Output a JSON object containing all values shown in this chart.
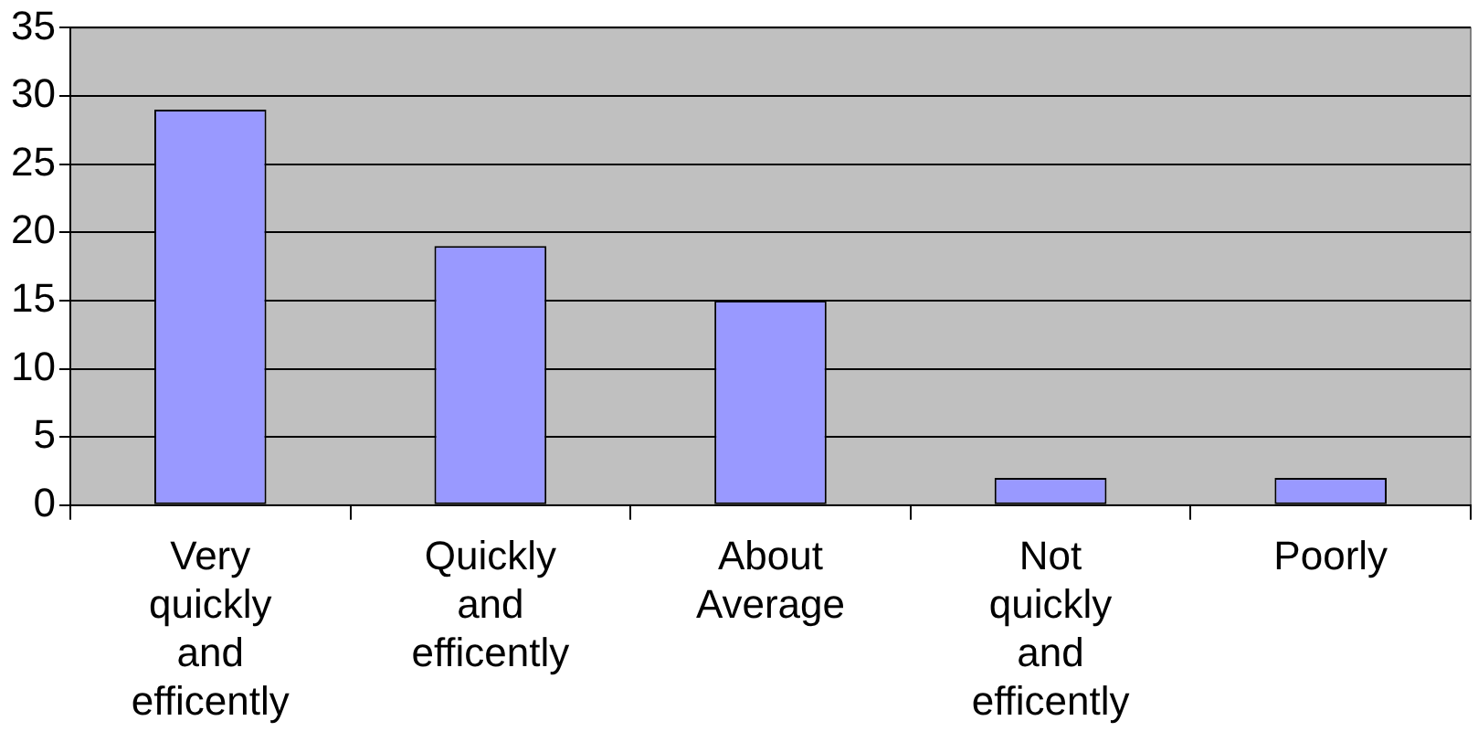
{
  "chart_data": {
    "type": "bar",
    "categories": [
      "Very quickly and efficently",
      "Quickly and efficently",
      "About Average",
      "Not quickly and efficently",
      "Poorly"
    ],
    "values": [
      29,
      19,
      15,
      2,
      2
    ],
    "color": "#9999ff",
    "ylim": [
      0,
      35
    ],
    "yticks": [
      0,
      5,
      10,
      15,
      20,
      25,
      30,
      35
    ],
    "grid": "y",
    "legend": false
  }
}
